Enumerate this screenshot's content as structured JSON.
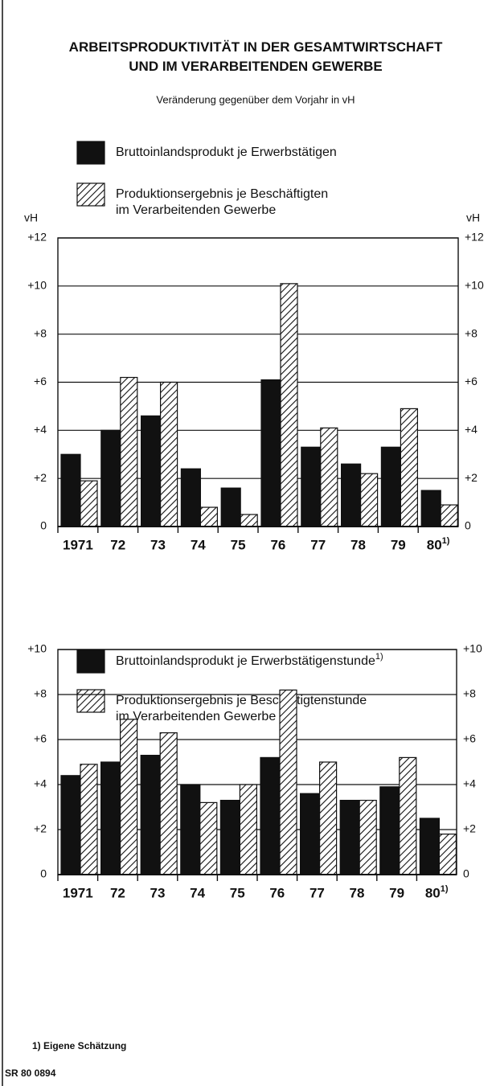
{
  "title": "ARBEITSPRODUKTIVITÄT IN DER GESAMTWIRTSCHAFT\nUND IM VERARBEITENDEN GEWERBE",
  "subtitle": "Veränderung gegenüber dem Vorjahr in vH",
  "footnote": "1) Eigene Schätzung",
  "source": "SR 80 0894",
  "chart_data": [
    {
      "type": "bar",
      "ylabel": "vH",
      "y2label": "vH",
      "categories": [
        "1971",
        "72",
        "73",
        "74",
        "75",
        "76",
        "77",
        "78",
        "79",
        "80"
      ],
      "category_note": "1)",
      "series": [
        {
          "name": "Bruttoinlandsprodukt je Erwerbstätigen",
          "color": "#111111",
          "values": [
            3.0,
            4.0,
            4.6,
            2.4,
            1.6,
            6.1,
            3.3,
            2.6,
            3.3,
            1.5
          ]
        },
        {
          "name": "Produktionsergebnis je Beschäftigten\nim Verarbeitenden Gewerbe",
          "color": "hatch",
          "values": [
            1.9,
            6.2,
            6.0,
            0.8,
            0.5,
            10.1,
            4.1,
            2.2,
            4.9,
            0.9
          ]
        }
      ],
      "ylim": [
        0,
        12
      ],
      "yticks": [
        0,
        {
          "value": 2,
          "label": "+2"
        },
        {
          "value": 4,
          "label": "+4"
        },
        {
          "value": 6,
          "label": "+6"
        },
        {
          "value": 8,
          "label": "+8"
        },
        {
          "value": 10,
          "label": "+10"
        },
        {
          "value": 12,
          "label": "+12"
        }
      ],
      "y2lim": [
        0,
        12
      ],
      "y2ticks": [
        0,
        {
          "value": 2,
          "label": "+2"
        },
        {
          "value": 4,
          "label": "+4"
        },
        {
          "value": 6,
          "label": "+6"
        },
        {
          "value": 8,
          "label": "+8"
        },
        {
          "value": 10,
          "label": "+10"
        },
        {
          "value": 12,
          "label": "+12"
        }
      ],
      "grid": true
    },
    {
      "type": "bar",
      "categories": [
        "1971",
        "72",
        "73",
        "74",
        "75",
        "76",
        "77",
        "78",
        "79",
        "80"
      ],
      "category_note": "1)",
      "series": [
        {
          "name": "Bruttoinlandsprodukt je Erwerbstätigenstunde",
          "name_note": "1)",
          "color": "#111111",
          "values": [
            4.4,
            5.0,
            5.3,
            4.0,
            3.3,
            5.2,
            3.6,
            3.3,
            3.9,
            2.5
          ]
        },
        {
          "name": "Produktionsergebnis je Beschäftigtenstunde\nim Verarbeitenden Gewerbe",
          "color": "hatch",
          "values": [
            4.9,
            6.9,
            6.3,
            3.2,
            4.0,
            8.2,
            5.0,
            3.3,
            5.2,
            1.8
          ]
        }
      ],
      "ylim": [
        0,
        10
      ],
      "yticks": [
        0,
        {
          "value": 2,
          "label": "+2"
        },
        {
          "value": 4,
          "label": "+4"
        },
        {
          "value": 6,
          "label": "+6"
        },
        {
          "value": 8,
          "label": "+8"
        },
        {
          "value": 10,
          "label": "+10"
        }
      ],
      "y2lim": [
        0,
        10
      ],
      "y2ticks": [
        0,
        {
          "value": 2,
          "label": "+2"
        },
        {
          "value": 4,
          "label": "+4"
        },
        {
          "value": 6,
          "label": "+6"
        },
        {
          "value": 8,
          "label": "+8"
        },
        {
          "value": 10,
          "label": "+10"
        }
      ],
      "grid": true
    }
  ]
}
